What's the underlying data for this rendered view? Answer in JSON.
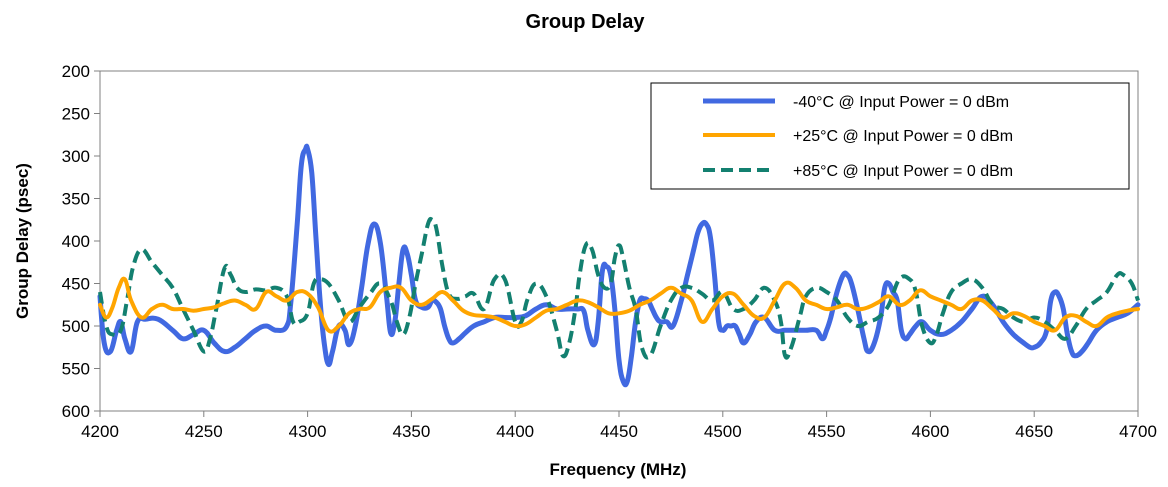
{
  "chart_data": {
    "type": "line",
    "title": "Group Delay",
    "xlabel": "Frequency (MHz)",
    "ylabel": "Group Delay (psec)",
    "xlim": [
      4200,
      4700
    ],
    "ylim": [
      200,
      600
    ],
    "y_inverted": true,
    "xticks": [
      4200,
      4250,
      4300,
      4350,
      4400,
      4450,
      4500,
      4550,
      4600,
      4650,
      4700
    ],
    "yticks": [
      200,
      250,
      300,
      350,
      400,
      450,
      500,
      550,
      600
    ],
    "grid": false,
    "legend_position": "top-right",
    "series": [
      {
        "name": "-40°C @ Input Power = 0 dBm",
        "color": "#4169E1",
        "style": "solid",
        "x": [
          4200,
          4202,
          4205,
          4208,
          4210,
          4212,
          4215,
          4218,
          4222,
          4228,
          4235,
          4240,
          4245,
          4250,
          4255,
          4260,
          4265,
          4270,
          4275,
          4280,
          4285,
          4290,
          4292,
          4295,
          4297,
          4299,
          4300,
          4302,
          4304,
          4306,
          4308,
          4310,
          4312,
          4315,
          4318,
          4320,
          4323,
          4326,
          4329,
          4332,
          4335,
          4338,
          4340,
          4342,
          4344,
          4346,
          4348,
          4350,
          4352,
          4355,
          4358,
          4360,
          4362,
          4364,
          4366,
          4368,
          4370,
          4373,
          4376,
          4380,
          4385,
          4390,
          4395,
          4400,
          4405,
          4410,
          4415,
          4420,
          4425,
          4430,
          4433,
          4435,
          4438,
          4440,
          4442,
          4444,
          4446,
          4448,
          4450,
          4452,
          4454,
          4456,
          4458,
          4460,
          4462,
          4464,
          4466,
          4468,
          4470,
          4473,
          4476,
          4480,
          4483,
          4486,
          4488,
          4490,
          4492,
          4494,
          4496,
          4498,
          4500,
          4502,
          4504,
          4506,
          4508,
          4510,
          4513,
          4516,
          4520,
          4525,
          4530,
          4535,
          4540,
          4545,
          4548,
          4550,
          4552,
          4555,
          4558,
          4560,
          4562,
          4565,
          4568,
          4570,
          4573,
          4576,
          4578,
          4580,
          4582,
          4584,
          4586,
          4588,
          4590,
          4593,
          4596,
          4600,
          4605,
          4610,
          4615,
          4620,
          4625,
          4630,
          4635,
          4640,
          4645,
          4648,
          4650,
          4653,
          4656,
          4658,
          4660,
          4662,
          4664,
          4666,
          4668,
          4670,
          4673,
          4676,
          4680,
          4685,
          4690,
          4695,
          4700
        ],
        "values": [
          465,
          520,
          530,
          505,
          495,
          515,
          530,
          495,
          492,
          492,
          505,
          515,
          510,
          505,
          520,
          530,
          525,
          515,
          505,
          500,
          505,
          500,
          470,
          380,
          310,
          292,
          292,
          320,
          395,
          470,
          520,
          545,
          530,
          500,
          505,
          522,
          500,
          455,
          405,
          380,
          402,
          465,
          508,
          495,
          450,
          410,
          415,
          440,
          470,
          478,
          478,
          470,
          472,
          480,
          500,
          515,
          520,
          515,
          508,
          500,
          495,
          490,
          490,
          490,
          488,
          480,
          475,
          480,
          480,
          480,
          482,
          505,
          522,
          495,
          435,
          430,
          440,
          480,
          540,
          565,
          565,
          535,
          495,
          470,
          468,
          470,
          480,
          490,
          495,
          495,
          500,
          470,
          440,
          410,
          390,
          380,
          380,
          395,
          440,
          495,
          505,
          500,
          500,
          500,
          510,
          520,
          510,
          495,
          490,
          505,
          505,
          505,
          505,
          505,
          515,
          505,
          490,
          460,
          440,
          440,
          450,
          480,
          515,
          530,
          520,
          490,
          455,
          450,
          460,
          470,
          505,
          515,
          510,
          500,
          495,
          505,
          510,
          505,
          495,
          480,
          465,
          475,
          495,
          510,
          520,
          525,
          525,
          520,
          505,
          470,
          460,
          465,
          480,
          510,
          530,
          535,
          530,
          520,
          505,
          495,
          490,
          485,
          475
        ]
      },
      {
        "name": "+25°C @ Input Power = 0 dBm",
        "color": "#FFA500",
        "style": "solid",
        "x": [
          4200,
          4203,
          4206,
          4209,
          4212,
          4215,
          4220,
          4225,
          4230,
          4235,
          4240,
          4245,
          4250,
          4255,
          4260,
          4265,
          4270,
          4275,
          4280,
          4285,
          4290,
          4295,
          4300,
          4305,
          4310,
          4315,
          4320,
          4325,
          4330,
          4335,
          4340,
          4345,
          4350,
          4355,
          4360,
          4365,
          4370,
          4375,
          4380,
          4385,
          4390,
          4395,
          4400,
          4405,
          4410,
          4415,
          4420,
          4425,
          4430,
          4435,
          4440,
          4445,
          4450,
          4455,
          4460,
          4465,
          4470,
          4475,
          4480,
          4485,
          4490,
          4495,
          4500,
          4505,
          4510,
          4515,
          4520,
          4525,
          4530,
          4535,
          4540,
          4545,
          4550,
          4555,
          4560,
          4565,
          4570,
          4575,
          4580,
          4585,
          4590,
          4595,
          4600,
          4605,
          4610,
          4615,
          4620,
          4625,
          4630,
          4635,
          4640,
          4645,
          4650,
          4655,
          4660,
          4665,
          4670,
          4675,
          4680,
          4685,
          4690,
          4695,
          4700
        ],
        "values": [
          475,
          490,
          478,
          455,
          445,
          470,
          490,
          480,
          475,
          480,
          480,
          482,
          480,
          478,
          473,
          470,
          475,
          480,
          460,
          465,
          470,
          460,
          462,
          478,
          505,
          500,
          485,
          480,
          478,
          460,
          455,
          455,
          470,
          475,
          468,
          460,
          470,
          482,
          487,
          488,
          490,
          495,
          500,
          498,
          490,
          482,
          480,
          475,
          470,
          472,
          478,
          485,
          485,
          482,
          475,
          470,
          462,
          455,
          462,
          470,
          495,
          480,
          465,
          462,
          475,
          488,
          490,
          470,
          450,
          455,
          470,
          475,
          480,
          478,
          475,
          480,
          478,
          472,
          465,
          475,
          470,
          458,
          465,
          470,
          475,
          480,
          470,
          470,
          480,
          490,
          485,
          488,
          495,
          500,
          505,
          490,
          488,
          495,
          500,
          490,
          485,
          482,
          480
        ]
      },
      {
        "name": "+85°C @ Input Power = 0 dBm",
        "color": "#138070",
        "style": "dashed",
        "x": [
          4200,
          4203,
          4206,
          4210,
          4213,
          4216,
          4220,
          4225,
          4230,
          4235,
          4240,
          4245,
          4250,
          4253,
          4256,
          4260,
          4263,
          4266,
          4270,
          4275,
          4280,
          4285,
          4290,
          4293,
          4296,
          4300,
          4303,
          4306,
          4310,
          4315,
          4320,
          4325,
          4330,
          4335,
          4340,
          4343,
          4346,
          4349,
          4352,
          4355,
          4358,
          4360,
          4362,
          4365,
          4368,
          4372,
          4376,
          4380,
          4385,
          4390,
          4395,
          4400,
          4403,
          4406,
          4410,
          4415,
          4420,
          4423,
          4426,
          4429,
          4431,
          4434,
          4437,
          4440,
          4443,
          4446,
          4448,
          4450,
          4452,
          4455,
          4458,
          4461,
          4465,
          4470,
          4475,
          4480,
          4485,
          4490,
          4495,
          4500,
          4505,
          4510,
          4515,
          4520,
          4525,
          4528,
          4530,
          4533,
          4537,
          4540,
          4545,
          4550,
          4555,
          4560,
          4565,
          4570,
          4575,
          4580,
          4585,
          4590,
          4593,
          4596,
          4600,
          4603,
          4606,
          4610,
          4615,
          4620,
          4625,
          4630,
          4635,
          4640,
          4645,
          4650,
          4655,
          4660,
          4665,
          4670,
          4675,
          4680,
          4685,
          4690,
          4693,
          4697,
          4700
        ],
        "values": [
          460,
          500,
          510,
          505,
          470,
          430,
          410,
          425,
          440,
          455,
          480,
          505,
          530,
          515,
          480,
          432,
          440,
          455,
          460,
          457,
          458,
          455,
          465,
          495,
          495,
          485,
          450,
          445,
          450,
          470,
          495,
          478,
          462,
          450,
          470,
          495,
          510,
          490,
          450,
          415,
          380,
          375,
          385,
          430,
          462,
          468,
          465,
          462,
          480,
          445,
          445,
          495,
          495,
          468,
          450,
          465,
          505,
          535,
          520,
          480,
          440,
          405,
          410,
          440,
          455,
          450,
          420,
          405,
          420,
          455,
          480,
          525,
          535,
          500,
          470,
          455,
          455,
          462,
          470,
          460,
          480,
          480,
          470,
          455,
          470,
          495,
          535,
          525,
          490,
          465,
          455,
          460,
          470,
          490,
          500,
          495,
          490,
          475,
          445,
          445,
          460,
          500,
          520,
          510,
          485,
          460,
          450,
          445,
          455,
          475,
          480,
          490,
          495,
          490,
          495,
          505,
          515,
          500,
          480,
          470,
          460,
          440,
          440,
          450,
          470
        ]
      }
    ]
  }
}
